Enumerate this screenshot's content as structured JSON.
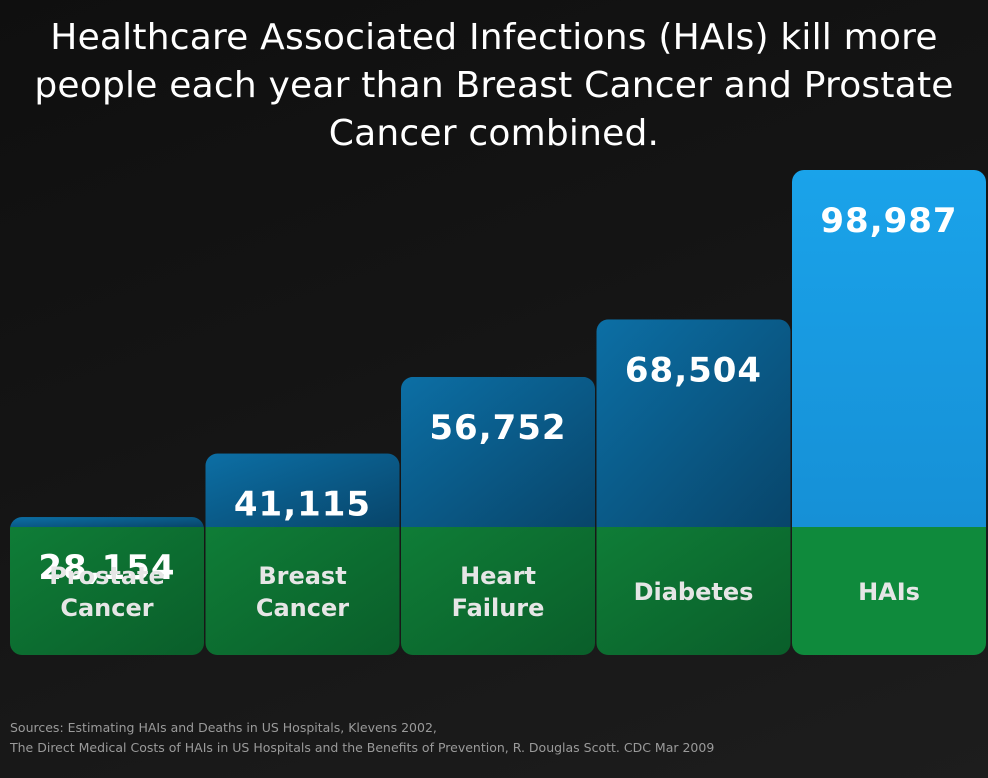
{
  "title": "Healthcare Associated Infections (HAIs) kill more people each year than Breast Cancer and Prostate Cancer combined.",
  "sources": [
    "Sources: Estimating HAIs and Deaths in US Hospitals, Klevens 2002,",
    "The Direct Medical Costs of HAIs in US Hospitals and the Benefits of Prevention, R. Douglas Scott. CDC Mar 2009"
  ],
  "colors": {
    "background": "#141414",
    "bar_top": "#0a5f8d",
    "bar_highlight": "#1a9be0",
    "label_band": "#0d7a36",
    "label_band_highlight": "#0f8a3c",
    "text": "#ffffff"
  },
  "chart_data": {
    "type": "bar",
    "categories": [
      [
        "Prostate",
        "Cancer"
      ],
      [
        "Breast",
        "Cancer"
      ],
      [
        "Heart",
        "Failure"
      ],
      [
        "Diabetes"
      ],
      [
        "HAIs"
      ]
    ],
    "values": [
      28154,
      41115,
      56752,
      68504,
      98987
    ],
    "value_labels": [
      "28,154",
      "41,115",
      "56,752",
      "68,504",
      "98,987"
    ],
    "highlight_index": 4,
    "ylim": [
      0,
      98987
    ],
    "grid": false,
    "legend": "none"
  }
}
